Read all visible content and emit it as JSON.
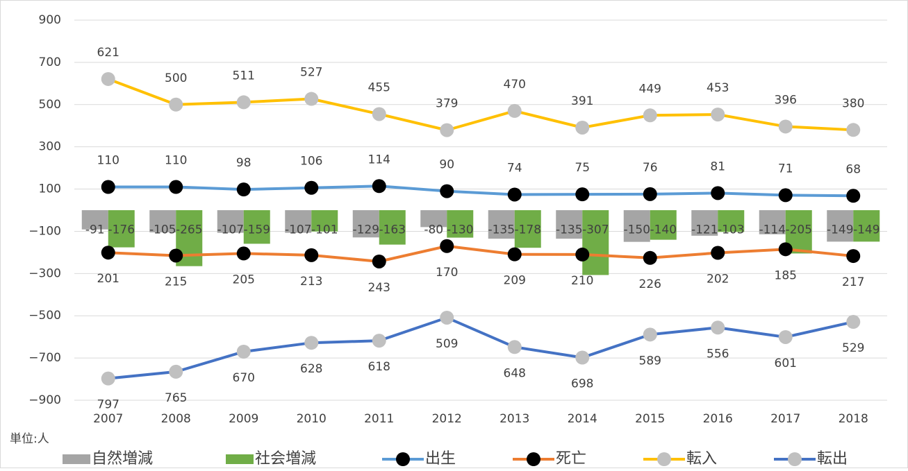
{
  "chart_data": {
    "type": "bar-line",
    "unit_label": "単位:人",
    "categories": [
      "2007",
      "2008",
      "2009",
      "2010",
      "2011",
      "2012",
      "2013",
      "2014",
      "2015",
      "2016",
      "2017",
      "2018"
    ],
    "ylim": [
      -900,
      900
    ],
    "yticks": [
      {
        "value": -900,
        "label": "−900"
      },
      {
        "value": -700,
        "label": "−700"
      },
      {
        "value": -500,
        "label": "−500"
      },
      {
        "value": -300,
        "label": "−300"
      },
      {
        "value": -100,
        "label": "−100"
      },
      100,
      300,
      500,
      700,
      900
    ],
    "grid": true,
    "series": [
      {
        "name": "自然増減",
        "kind": "bar",
        "color": "#a5a5a5",
        "values": [
          -91,
          -105,
          -107,
          -107,
          -129,
          -80,
          -135,
          -135,
          -150,
          -121,
          -114,
          -149
        ]
      },
      {
        "name": "社会増減",
        "kind": "bar",
        "color": "#70ad47",
        "values": [
          -176,
          -265,
          -159,
          -101,
          -163,
          -130,
          -178,
          -307,
          -140,
          -103,
          -205,
          -149
        ]
      },
      {
        "name": "出生",
        "kind": "line",
        "color": "#5b9bd5",
        "marker_color": "#000000",
        "values": [
          110,
          110,
          98,
          106,
          114,
          90,
          74,
          75,
          76,
          81,
          71,
          68
        ]
      },
      {
        "name": "死亡",
        "kind": "line",
        "color": "#ed7d31",
        "marker_color": "#000000",
        "values": [
          -201,
          -215,
          -205,
          -213,
          -243,
          -170,
          -209,
          -210,
          -226,
          -202,
          -185,
          -217
        ],
        "value_labels": [
          "201",
          "215",
          "205",
          "213",
          "243",
          "170",
          "209",
          "210",
          "226",
          "202",
          "185",
          "217"
        ]
      },
      {
        "name": "転入",
        "kind": "line",
        "color": "#ffc000",
        "marker_color": "#c0c0c0",
        "values": [
          621,
          500,
          511,
          527,
          455,
          379,
          470,
          391,
          449,
          453,
          396,
          380
        ]
      },
      {
        "name": "転出",
        "kind": "line",
        "color": "#4472c4",
        "marker_color": "#c0c0c0",
        "values": [
          -797,
          -765,
          -670,
          -628,
          -618,
          -509,
          -648,
          -698,
          -589,
          -556,
          -601,
          -529
        ],
        "value_labels": [
          "797",
          "765",
          "670",
          "628",
          "618",
          "509",
          "648",
          "698",
          "589",
          "556",
          "601",
          "529"
        ]
      }
    ]
  }
}
